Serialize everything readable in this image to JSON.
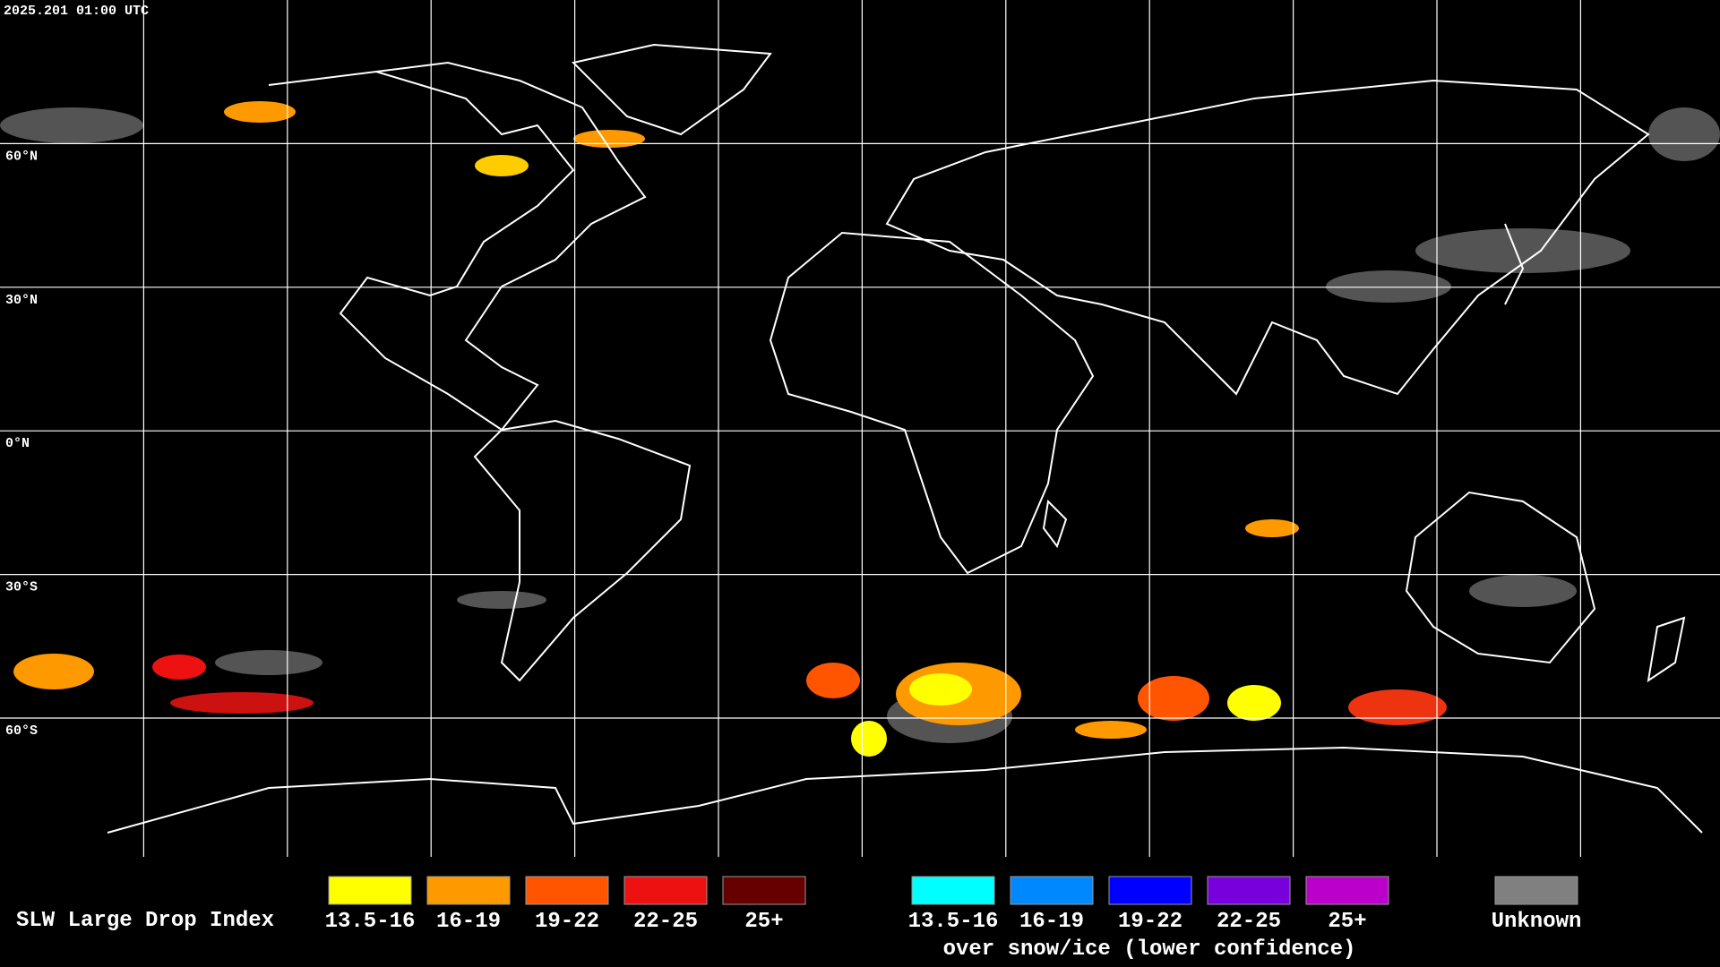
{
  "header": {
    "timestamp": "2025.201 01:00 UTC"
  },
  "map": {
    "lat_labels": [
      "60°N",
      "30°N",
      "0°N",
      "30°S",
      "60°S"
    ]
  },
  "legend": {
    "title": "SLW Large Drop Index",
    "groups": [
      {
        "items": [
          {
            "label": "13.5-16",
            "color": "#ffff00"
          },
          {
            "label": "16-19",
            "color": "#ff9900"
          },
          {
            "label": "19-22",
            "color": "#ff5500"
          },
          {
            "label": "22-25",
            "color": "#ee1111"
          },
          {
            "label": "25+",
            "color": "#660000"
          }
        ]
      },
      {
        "items": [
          {
            "label": "13.5-16",
            "color": "#00ffff"
          },
          {
            "label": "16-19",
            "color": "#0088ff"
          },
          {
            "label": "19-22",
            "color": "#0000ff"
          },
          {
            "label": "22-25",
            "color": "#7700dd"
          },
          {
            "label": "25+",
            "color": "#bb00cc"
          }
        ],
        "caption": "over snow/ice (lower confidence)"
      }
    ],
    "unknown": {
      "label": "Unknown",
      "color": "#808080"
    }
  }
}
